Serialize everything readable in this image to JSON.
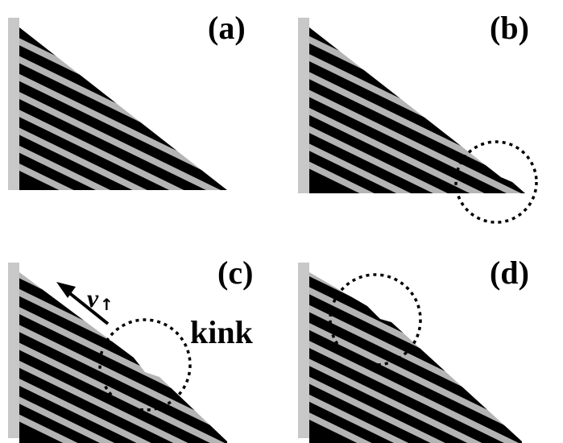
{
  "figure": {
    "panels": [
      {
        "label": "(a)"
      },
      {
        "label": "(b)"
      },
      {
        "label": "(c)"
      },
      {
        "label": "(d)"
      }
    ],
    "annotations": {
      "kink_label": "kink",
      "velocity_symbol": "v",
      "velocity_subscript": "↑"
    },
    "colors": {
      "background": "#ffffff",
      "stripe_dark": "#000000",
      "stripe_light": "#b4b4b4",
      "wall": "#c8c8c8"
    }
  }
}
